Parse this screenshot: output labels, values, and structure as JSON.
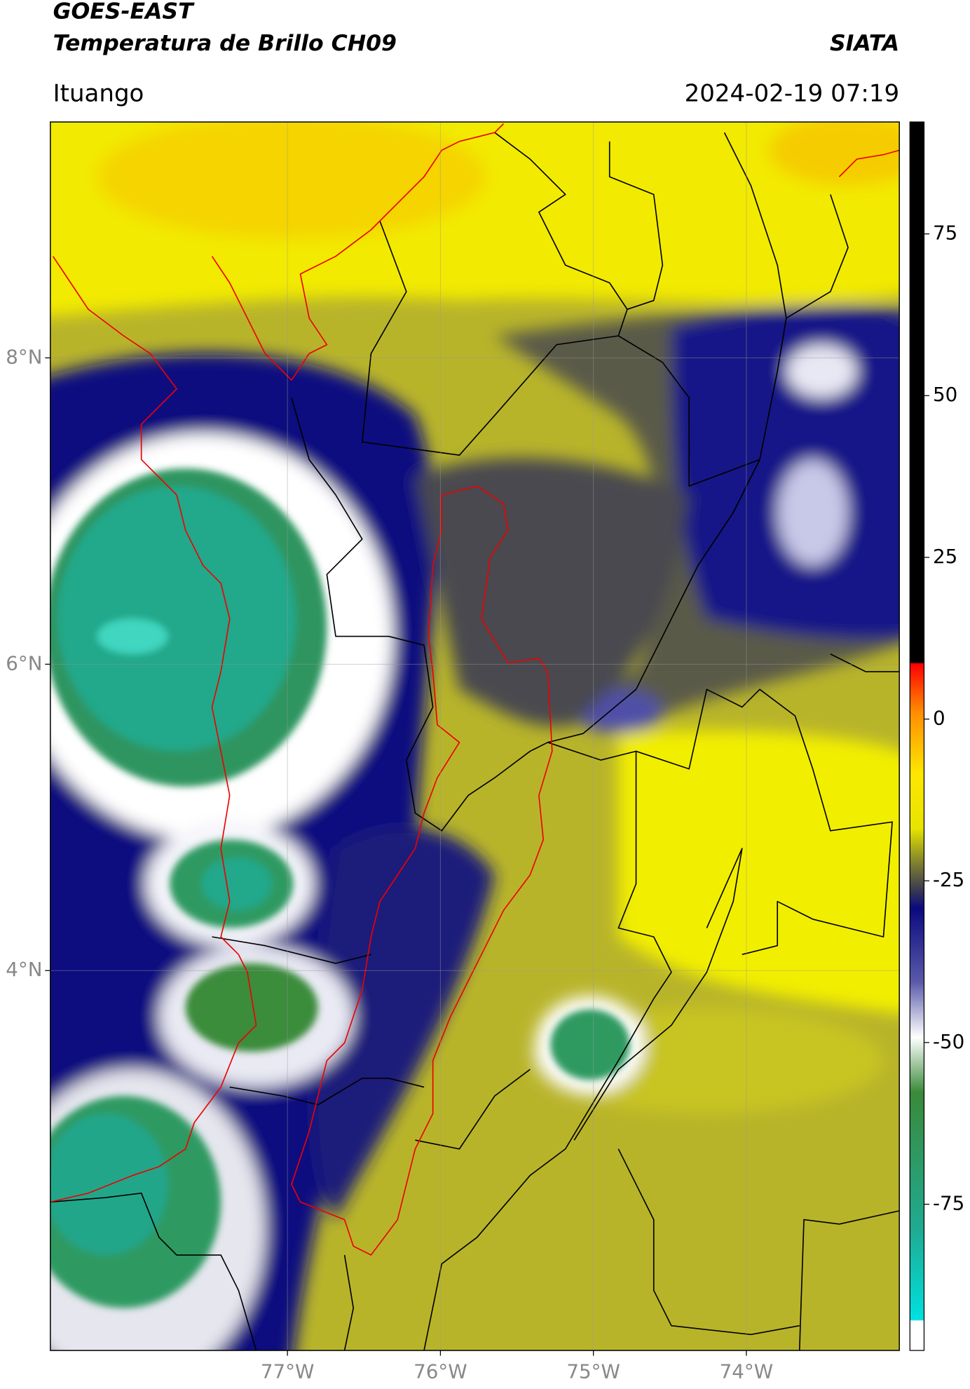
{
  "chart_data": {
    "type": "map",
    "title": "GOES-EAST",
    "subtitle": "Temperatura de Brillo CH09",
    "source": "SIATA",
    "location": "Ituango",
    "datetime": "2024-02-19 07:19",
    "xlim": [
      -78.55,
      -73.0
    ],
    "ylim": [
      1.52,
      9.54
    ],
    "xticks": [
      {
        "value": -77,
        "label": "77°W"
      },
      {
        "value": -76,
        "label": "76°W"
      },
      {
        "value": -75,
        "label": "75°W"
      },
      {
        "value": -74,
        "label": "74°W"
      }
    ],
    "yticks": [
      {
        "value": 8,
        "label": "8°N"
      },
      {
        "value": 6,
        "label": "6°N"
      },
      {
        "value": 4,
        "label": "4°N"
      }
    ],
    "grid": true,
    "colorbar": {
      "lim": [
        -97.6,
        92.3
      ],
      "ticks": [
        75,
        50,
        25,
        0,
        -25,
        -50,
        -75
      ]
    }
  }
}
